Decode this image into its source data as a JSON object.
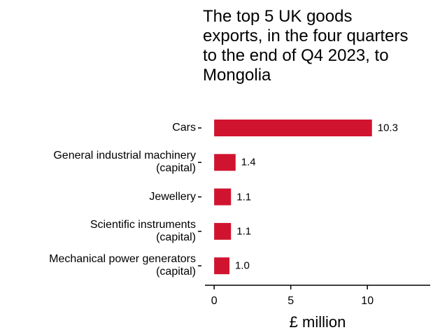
{
  "chart_data": {
    "type": "bar",
    "orientation": "horizontal",
    "title": "The top 5 UK goods exports, in the four quarters to the end of Q4 2023, to Mongolia",
    "categories": [
      "Cars",
      "General industrial machinery\n(capital)",
      "Jewellery",
      "Scientific instruments\n(capital)",
      "Mechanical power generators\n(capital)"
    ],
    "values": [
      10.3,
      1.4,
      1.1,
      1.1,
      1.0
    ],
    "value_labels": [
      "10.3",
      "1.4",
      "1.1",
      "1.1",
      "1.0"
    ],
    "color": "#d0142f",
    "xlabel": "£ million",
    "xlim": [
      -0.6,
      14.1
    ],
    "xticks": [
      0,
      5,
      10
    ]
  }
}
